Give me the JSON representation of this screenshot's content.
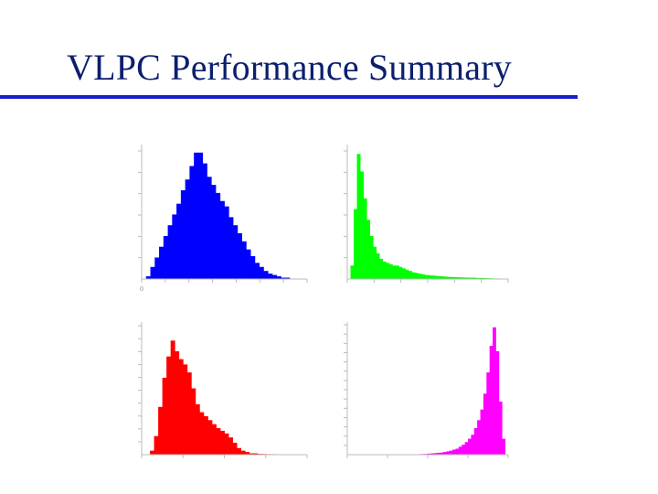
{
  "slide": {
    "title": "VLPC Performance Summary",
    "rule_color": "#1a1ec8",
    "title_color": "#0b1f6e"
  },
  "chart_data": [
    {
      "type": "bar",
      "color": "#0000ff",
      "title": "",
      "xlabel": "",
      "ylabel": "",
      "xticks": [
        "0",
        "",
        "",
        "",
        "",
        "",
        "",
        ""
      ],
      "yticks": [
        "",
        "",
        "",
        "",
        "",
        ""
      ],
      "ylim": [
        0,
        1.0
      ],
      "note": "",
      "values": [
        0,
        0.02,
        0.09,
        0.16,
        0.24,
        0.32,
        0.4,
        0.48,
        0.56,
        0.66,
        0.74,
        0.84,
        0.94,
        0.94,
        0.86,
        0.76,
        0.7,
        0.64,
        0.58,
        0.54,
        0.46,
        0.4,
        0.34,
        0.28,
        0.22,
        0.17,
        0.12,
        0.09,
        0.06,
        0.04,
        0.03,
        0.02,
        0.01,
        0.01,
        0,
        0,
        0,
        0
      ]
    },
    {
      "type": "bar",
      "color": "#00ff00",
      "title": "",
      "xlabel": "",
      "ylabel": "",
      "xticks": [
        "",
        "",
        "",
        "",
        "",
        "",
        ""
      ],
      "yticks": [
        "",
        "",
        "",
        "",
        "",
        ""
      ],
      "ylim": [
        0,
        1.0
      ],
      "note": "",
      "values": [
        0,
        0.1,
        0.52,
        0.93,
        0.8,
        0.6,
        0.44,
        0.32,
        0.24,
        0.19,
        0.15,
        0.13,
        0.12,
        0.11,
        0.1,
        0.1,
        0.09,
        0.08,
        0.07,
        0.06,
        0.05,
        0.045,
        0.04,
        0.035,
        0.03,
        0.028,
        0.026,
        0.024,
        0.022,
        0.02,
        0.018,
        0.016,
        0.015,
        0.014,
        0.013,
        0.012,
        0.011,
        0.01,
        0.01,
        0.01,
        0.008,
        0.008,
        0.007,
        0.006,
        0.005,
        0.004,
        0.004,
        0.003,
        0.003,
        0.002
      ]
    },
    {
      "type": "bar",
      "color": "#ff0000",
      "title": "",
      "xlabel": "",
      "ylabel": "",
      "xticks": [
        "",
        "",
        "",
        "",
        ""
      ],
      "yticks": [
        "",
        "",
        "",
        "",
        "",
        "",
        "",
        "",
        "",
        ""
      ],
      "ylim": [
        0,
        1.0
      ],
      "note": "",
      "values": [
        0,
        0,
        0.03,
        0.14,
        0.36,
        0.58,
        0.74,
        0.86,
        0.78,
        0.72,
        0.68,
        0.62,
        0.5,
        0.38,
        0.32,
        0.29,
        0.26,
        0.23,
        0.2,
        0.18,
        0.16,
        0.13,
        0.09,
        0.05,
        0.03,
        0.02,
        0.01,
        0.01,
        0.006,
        0.005,
        0.004,
        0.004,
        0.003,
        0.003,
        0.002,
        0.002,
        0.002,
        0.001,
        0.001,
        0
      ]
    },
    {
      "type": "bar",
      "color": "#ff00ff",
      "title": "",
      "xlabel": "",
      "ylabel": "",
      "xticks": [
        "",
        "",
        "",
        "",
        ""
      ],
      "yticks": [
        "",
        "",
        "",
        "",
        "",
        "",
        "",
        "",
        "",
        "",
        "",
        "",
        "",
        ""
      ],
      "ylim": [
        0,
        1.0
      ],
      "note": "",
      "values": [
        0,
        0,
        0,
        0,
        0,
        0,
        0,
        0,
        0,
        0,
        0,
        0,
        0,
        0,
        0,
        0,
        0,
        0,
        0,
        0,
        0,
        0,
        0.003,
        0.004,
        0.005,
        0.006,
        0.008,
        0.01,
        0.012,
        0.014,
        0.016,
        0.02,
        0.025,
        0.03,
        0.038,
        0.045,
        0.06,
        0.075,
        0.095,
        0.12,
        0.15,
        0.2,
        0.26,
        0.34,
        0.46,
        0.62,
        0.82,
        0.96,
        0.78,
        0.4,
        0.12,
        0
      ]
    }
  ]
}
